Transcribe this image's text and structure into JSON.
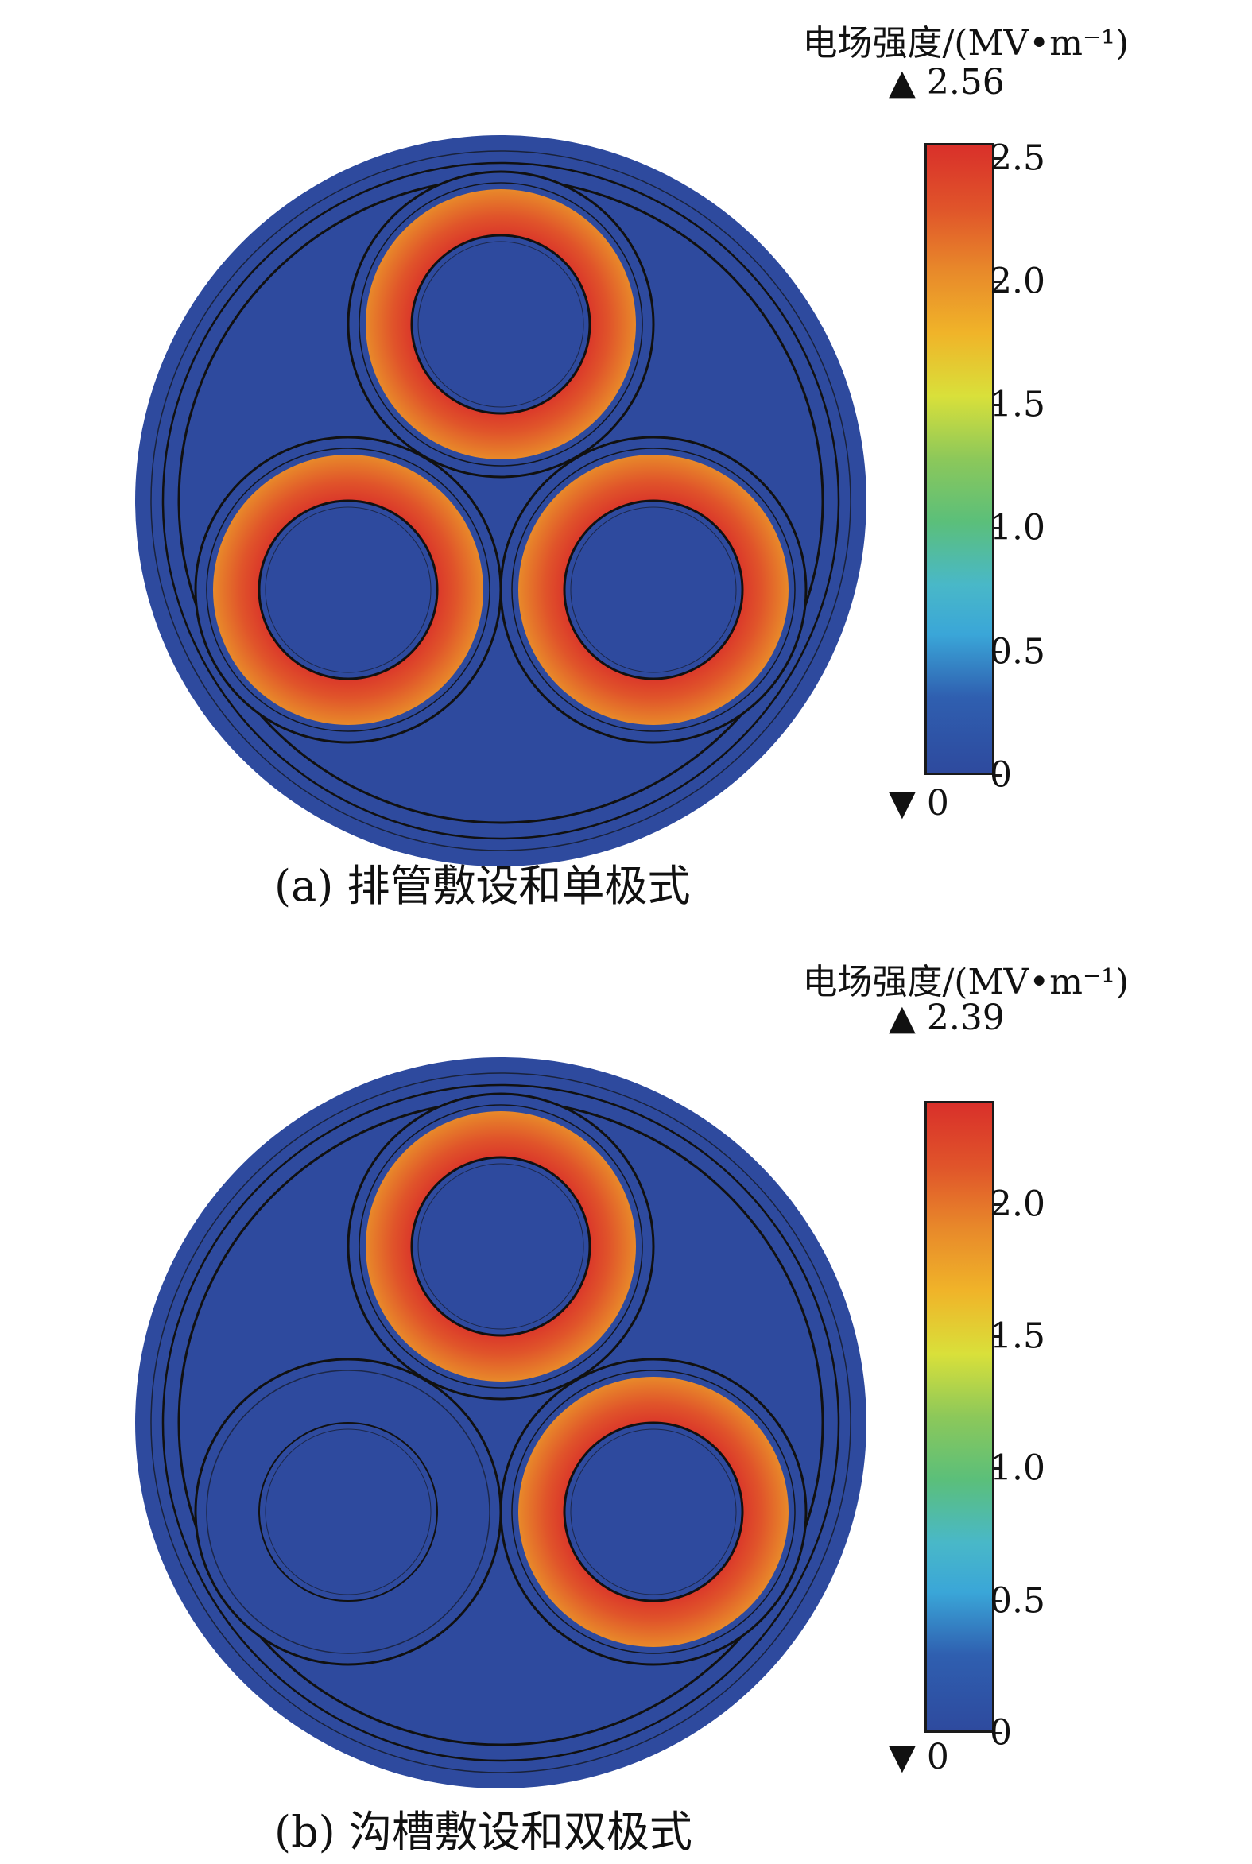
{
  "panels": [
    {
      "id": "a",
      "legend_title": "电场强度/(MV•m⁻¹)",
      "max_marker": "▲ 2.56",
      "min_marker": "▼ 0",
      "colorbar_max": 2.56,
      "ticks": [
        "0",
        "0.5",
        "1.0",
        "1.5",
        "2.0",
        "2.5"
      ],
      "tick_values": [
        0,
        0.5,
        1.0,
        1.5,
        2.0,
        2.5
      ],
      "caption": "(a) 排管敷设和单极式",
      "energized_cores": [
        true,
        true,
        true
      ]
    },
    {
      "id": "b",
      "legend_title": "电场强度/(MV•m⁻¹)",
      "max_marker": "▲ 2.39",
      "min_marker": "▼ 0",
      "colorbar_max": 2.39,
      "ticks": [
        "0",
        "0.5",
        "1.0",
        "1.5",
        "2.0"
      ],
      "tick_values": [
        0,
        0.5,
        1.0,
        1.5,
        2.0
      ],
      "caption": "(b) 沟槽敷设和双极式",
      "energized_cores": [
        true,
        false,
        true
      ]
    }
  ],
  "colors": {
    "background_field": "#2e4a9e",
    "ring_outer": "#e8892a",
    "ring_inner": "#d9302a",
    "outline": "#111111"
  }
}
